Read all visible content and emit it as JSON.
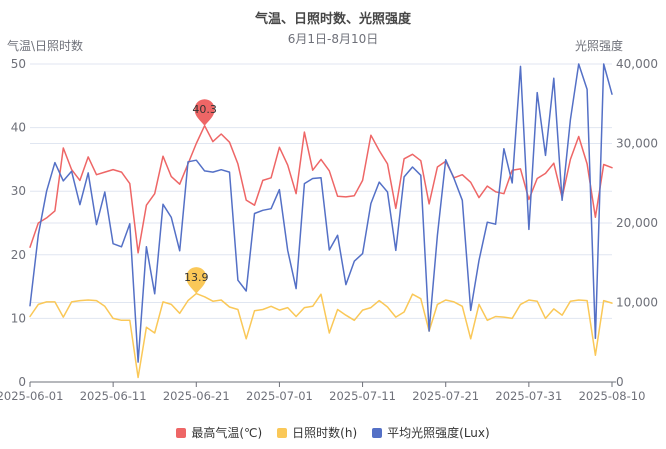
{
  "chart_data": {
    "type": "line",
    "title": "气温、日照时数、光照强度",
    "subtitle": "6月1日-8月10日",
    "grid": true,
    "legend_position": "bottom",
    "x": [
      "2025-06-01",
      "2025-06-02",
      "2025-06-03",
      "2025-06-04",
      "2025-06-05",
      "2025-06-06",
      "2025-06-07",
      "2025-06-08",
      "2025-06-09",
      "2025-06-10",
      "2025-06-11",
      "2025-06-12",
      "2025-06-13",
      "2025-06-14",
      "2025-06-15",
      "2025-06-16",
      "2025-06-17",
      "2025-06-18",
      "2025-06-19",
      "2025-06-20",
      "2025-06-21",
      "2025-06-22",
      "2025-06-23",
      "2025-06-24",
      "2025-06-25",
      "2025-06-26",
      "2025-06-27",
      "2025-06-28",
      "2025-06-29",
      "2025-06-30",
      "2025-07-01",
      "2025-07-02",
      "2025-07-03",
      "2025-07-04",
      "2025-07-05",
      "2025-07-06",
      "2025-07-07",
      "2025-07-08",
      "2025-07-09",
      "2025-07-10",
      "2025-07-11",
      "2025-07-12",
      "2025-07-13",
      "2025-07-14",
      "2025-07-15",
      "2025-07-16",
      "2025-07-17",
      "2025-07-18",
      "2025-07-19",
      "2025-07-20",
      "2025-07-21",
      "2025-07-22",
      "2025-07-23",
      "2025-07-24",
      "2025-07-25",
      "2025-07-26",
      "2025-07-27",
      "2025-07-28",
      "2025-07-29",
      "2025-07-30",
      "2025-07-31",
      "2025-08-01",
      "2025-08-02",
      "2025-08-03",
      "2025-08-04",
      "2025-08-05",
      "2025-08-06",
      "2025-08-07",
      "2025-08-08",
      "2025-08-09",
      "2025-08-10"
    ],
    "x_tick_labels": [
      "2025-06-01",
      "2025-06-11",
      "2025-06-21",
      "2025-07-01",
      "2025-07-11",
      "2025-07-21",
      "2025-07-31",
      "2025-08-10"
    ],
    "left_axis": {
      "name": "气温\\日照时数",
      "min": 0,
      "max": 50,
      "tick_labels": [
        "0",
        "10",
        "20",
        "30",
        "40",
        "50"
      ]
    },
    "right_axis": {
      "name": "光照强度",
      "min": 0,
      "max": 40000,
      "tick_labels": [
        "0",
        "10,000",
        "20,000",
        "30,000",
        "40,000"
      ]
    },
    "series": [
      {
        "name": "最高气温(℃)",
        "axis": "left",
        "color": "#EE6666",
        "values": [
          21.2,
          25,
          25.8,
          26.9,
          36.8,
          33.4,
          31.7,
          35.4,
          32.6,
          33,
          33.4,
          33,
          31.2,
          20.3,
          27.8,
          29.6,
          35.5,
          32.3,
          31.1,
          34.3,
          37.5,
          40.3,
          37.8,
          39,
          37.7,
          34.3,
          28.6,
          27.8,
          31.7,
          32.1,
          36.9,
          34.1,
          29.6,
          39.3,
          33.3,
          35,
          33.2,
          29.2,
          29.1,
          29.3,
          31.7,
          38.8,
          36.4,
          34.3,
          27.3,
          35.1,
          35.8,
          34.8,
          28,
          33.8,
          34.7,
          32.1,
          32.6,
          31.4,
          29,
          30.8,
          29.9,
          29.6,
          33.3,
          33.5,
          28.7,
          32,
          32.8,
          34.4,
          29,
          35,
          38.6,
          34.3,
          25.9,
          34.2,
          33.7
        ]
      },
      {
        "name": "日照时数(h)",
        "axis": "left",
        "color": "#FAC858",
        "values": [
          10.3,
          12.2,
          12.6,
          12.6,
          10.2,
          12.6,
          12.8,
          12.9,
          12.8,
          11.9,
          10,
          9.7,
          9.7,
          0.7,
          8.6,
          7.7,
          12.6,
          12.2,
          10.8,
          12.8,
          13.9,
          13.4,
          12.7,
          12.9,
          11.8,
          11.4,
          6.8,
          11.2,
          11.4,
          11.9,
          11.3,
          11.7,
          10.3,
          11.7,
          11.9,
          13.8,
          7.7,
          11.4,
          10.5,
          9.7,
          11.3,
          11.7,
          12.8,
          11.8,
          10.2,
          11,
          13.8,
          13.1,
          8,
          12.2,
          12.9,
          12.6,
          11.9,
          6.8,
          12.2,
          9.7,
          10.3,
          10.2,
          10,
          12.2,
          12.9,
          12.7,
          10,
          11.5,
          10.5,
          12.7,
          12.9,
          12.8,
          4.2,
          12.8,
          12.4
        ]
      },
      {
        "name": "平均光照强度(Lux)",
        "axis": "right",
        "color": "#5470C6",
        "values": [
          9600,
          18500,
          24000,
          27600,
          25300,
          26500,
          22300,
          26300,
          19800,
          23900,
          17400,
          17000,
          19900,
          2500,
          17000,
          11100,
          22350,
          20700,
          16500,
          27700,
          27900,
          26550,
          26400,
          26700,
          26400,
          12800,
          11450,
          21200,
          21600,
          21800,
          24200,
          16550,
          11750,
          24950,
          25600,
          25700,
          16600,
          18450,
          12250,
          15200,
          16150,
          22450,
          25150,
          23900,
          16550,
          25800,
          27050,
          26000,
          6400,
          18450,
          27950,
          25600,
          22850,
          9000,
          15300,
          20100,
          19850,
          29350,
          25050,
          39700,
          19200,
          36400,
          28500,
          38200,
          22850,
          33000,
          40000,
          36800,
          5500,
          40000,
          36200
        ]
      }
    ],
    "markpoints": [
      {
        "series_index": 0,
        "x": "2025-06-22",
        "label": "40.3"
      },
      {
        "series_index": 1,
        "x": "2025-06-21",
        "label": "13.9"
      }
    ]
  },
  "colors": {
    "grid_line": "#E0E6F1",
    "axis_line": "#6E7079",
    "axis_label": "#6E7079",
    "title": "#464646",
    "subtitle": "#6E7079",
    "legend_text": "#333333",
    "pin_label": "#333333"
  }
}
